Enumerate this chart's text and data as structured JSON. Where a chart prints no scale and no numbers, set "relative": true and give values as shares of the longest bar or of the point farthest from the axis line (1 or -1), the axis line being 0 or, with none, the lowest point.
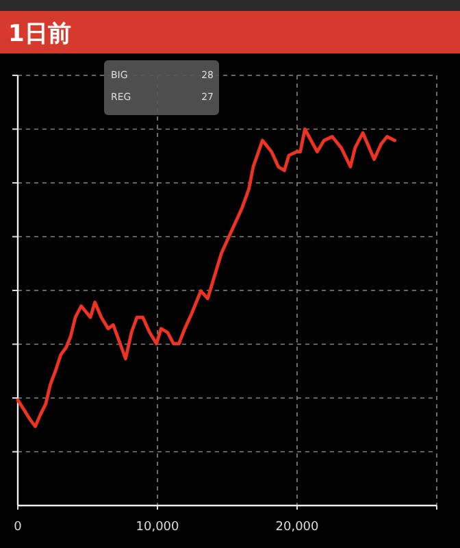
{
  "chart_data": {
    "type": "line",
    "title": "1日前",
    "relative": true,
    "tick_labels": "x",
    "grid": true,
    "color": "#ee3322",
    "x": [
      0,
      520,
      850,
      1250,
      1600,
      2000,
      2320,
      2720,
      3070,
      3460,
      3790,
      4120,
      4540,
      5200,
      5520,
      5980,
      6470,
      6830,
      7230,
      7720,
      8140,
      8530,
      8950,
      9440,
      9930,
      10260,
      10720,
      11150,
      11540,
      11960,
      12450,
      13110,
      13600,
      14090,
      14580,
      15070,
      16050,
      16540,
      16860,
      17520,
      18170,
      18660,
      19090,
      19410,
      19970,
      20230,
      20560,
      21440,
      21930,
      22520,
      23170,
      23820,
      24150,
      24710,
      25520,
      26010,
      26440,
      26990
    ],
    "values": [
      0.28,
      0.25,
      0.23,
      0.21,
      0.24,
      0.27,
      0.32,
      0.36,
      0.4,
      0.42,
      0.45,
      0.5,
      0.53,
      0.5,
      0.54,
      0.5,
      0.47,
      0.48,
      0.44,
      0.39,
      0.46,
      0.5,
      0.5,
      0.46,
      0.43,
      0.47,
      0.46,
      0.43,
      0.43,
      0.47,
      0.51,
      0.57,
      0.55,
      0.61,
      0.67,
      0.71,
      0.79,
      0.84,
      0.9,
      0.97,
      0.94,
      0.9,
      0.89,
      0.93,
      0.94,
      0.94,
      1,
      0.94,
      0.97,
      0.98,
      0.95,
      0.9,
      0.95,
      0.99,
      0.92,
      0.96,
      0.98,
      0.97
    ],
    "xlim": [
      0,
      30000
    ],
    "xticks": [
      0,
      {
        "value": 10000,
        "label": "10,000"
      },
      {
        "value": 20000,
        "label": "20,000"
      },
      {
        "value": 30000,
        "label": null
      }
    ],
    "annotations": [
      "BIG",
      "28",
      "REG",
      "27"
    ]
  }
}
